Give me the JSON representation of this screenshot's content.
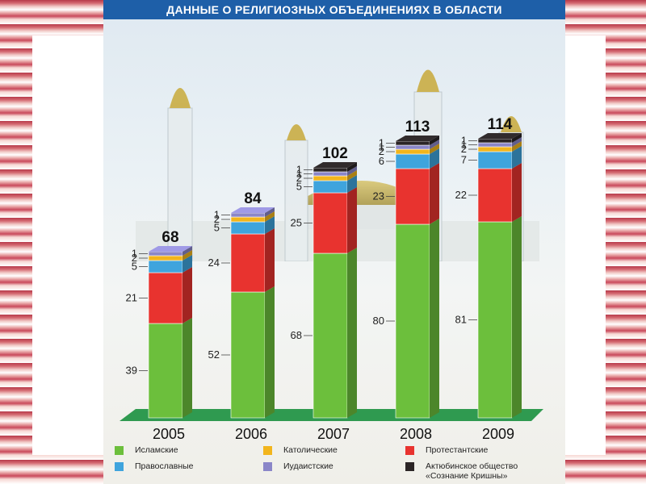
{
  "banner": {
    "title": "ДАННЫЕ О РЕЛИГИОЗНЫХ ОБЪЕДИНЕНИЯХ В ОБЛАСТИ"
  },
  "chart_data": {
    "type": "bar",
    "stacked": true,
    "categories": [
      "2005",
      "2006",
      "2007",
      "2008",
      "2009"
    ],
    "totals": [
      68,
      84,
      102,
      113,
      114
    ],
    "series": [
      {
        "name": "Исламские",
        "color": "#6cbf3c",
        "values": [
          39,
          52,
          68,
          80,
          81
        ]
      },
      {
        "name": "Протестантские",
        "color": "#e8332f",
        "values": [
          21,
          24,
          25,
          23,
          22
        ]
      },
      {
        "name": "Православные",
        "color": "#3fa4dd",
        "values": [
          5,
          5,
          5,
          6,
          7
        ]
      },
      {
        "name": "Католические",
        "color": "#f2b51c",
        "values": [
          2,
          2,
          2,
          2,
          2
        ]
      },
      {
        "name": "Иудаистские",
        "color": "#8a86c8",
        "values": [
          1,
          1,
          1,
          1,
          1
        ]
      },
      {
        "name": "Актюбинское общество\n«Сознание Кришны»",
        "color": "#2b2526",
        "values": [
          null,
          null,
          1,
          1,
          1
        ]
      }
    ],
    "legend": [
      {
        "name": "Исламские",
        "color": "#6cbf3c"
      },
      {
        "name": "Католические",
        "color": "#f2b51c"
      },
      {
        "name": "Протестантские",
        "color": "#e8332f"
      },
      {
        "name": "Православные",
        "color": "#3fa4dd"
      },
      {
        "name": "Иудаистские",
        "color": "#8a86c8"
      },
      {
        "name": "Актюбинское общество\n«Сознание Кришны»",
        "color": "#2b2526"
      }
    ],
    "legend_position": "bottom"
  }
}
